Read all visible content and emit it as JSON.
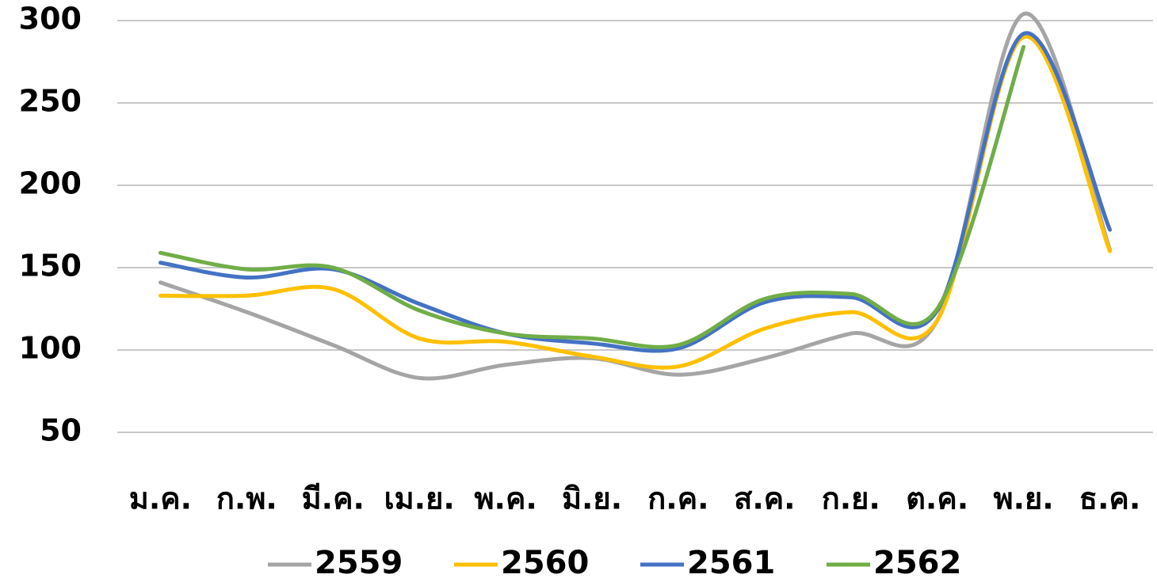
{
  "chart_data": {
    "type": "line",
    "categories": [
      "ม.ค.",
      "ก.พ.",
      "มี.ค.",
      "เม.ย.",
      "พ.ค.",
      "มิ.ย.",
      "ก.ค.",
      "ส.ค.",
      "ก.ย.",
      "ต.ค.",
      "พ.ย.",
      "ธ.ค."
    ],
    "series": [
      {
        "name": "2559",
        "color": "#a5a5a5",
        "values": [
          141,
          123,
          103,
          83,
          91,
          95,
          85,
          95,
          110,
          118,
          304,
          161
        ]
      },
      {
        "name": "2560",
        "color": "#ffc000",
        "values": [
          133,
          133,
          137,
          107,
          105,
          96,
          90,
          113,
          123,
          118,
          290,
          160
        ]
      },
      {
        "name": "2561",
        "color": "#4472c4",
        "values": [
          153,
          144,
          149,
          128,
          110,
          104,
          101,
          129,
          132,
          124,
          292,
          173
        ]
      },
      {
        "name": "2562",
        "color": "#70ad47",
        "values": [
          159,
          149,
          150,
          124,
          110,
          107,
          103,
          131,
          134,
          125,
          284,
          null
        ]
      }
    ],
    "ylim": [
      50,
      300
    ],
    "yticks": [
      50,
      100,
      150,
      200,
      250,
      300
    ],
    "grid": true,
    "smooth": true,
    "legend": "bottom"
  }
}
